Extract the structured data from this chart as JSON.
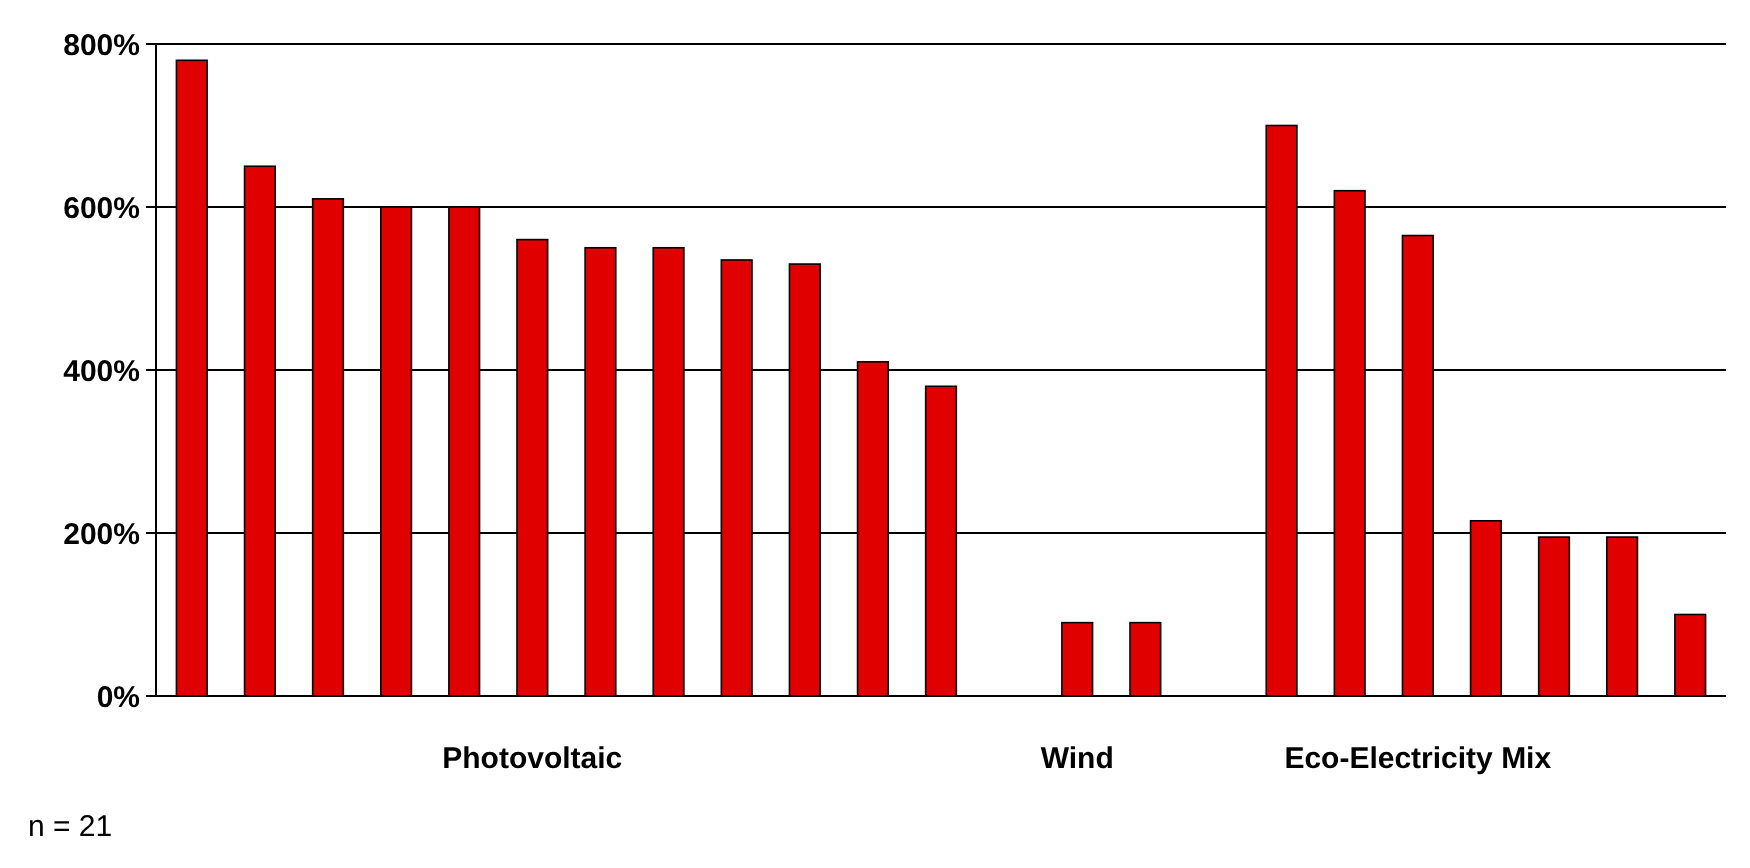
{
  "chart_data": {
    "type": "bar",
    "categories": [
      null,
      null,
      null,
      null,
      null,
      "Photovoltaic",
      null,
      null,
      null,
      null,
      null,
      null,
      null,
      "Wind",
      null,
      null,
      null,
      null,
      "Eco-Electricity Mix",
      null,
      null,
      null,
      null
    ],
    "values": [
      780,
      650,
      610,
      600,
      600,
      560,
      550,
      550,
      535,
      530,
      410,
      380,
      null,
      90,
      90,
      null,
      700,
      620,
      565,
      215,
      195,
      195,
      100
    ],
    "color": "#e00000",
    "ylim": [
      0,
      800
    ],
    "yticks": [
      {
        "value": 0,
        "label": "0%"
      },
      {
        "value": 200,
        "label": "200%"
      },
      {
        "value": 400,
        "label": "400%"
      },
      {
        "value": 600,
        "label": "600%"
      },
      {
        "value": 800,
        "label": "800%"
      }
    ],
    "grid": "y",
    "annotations": [
      "n = 21"
    ]
  }
}
